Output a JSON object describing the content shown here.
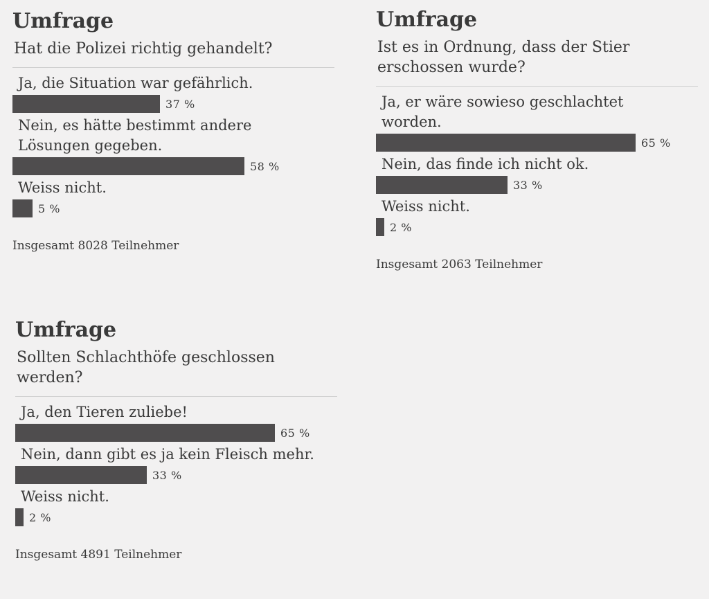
{
  "polls": [
    {
      "heading": "Umfrage",
      "question": "Hat die Polizei richtig gehandelt?",
      "answers": [
        {
          "label": "Ja, die Situation war gefährlich.",
          "percent": "37 %"
        },
        {
          "label": "Nein, es hätte bestimmt andere\nLösungen gegeben.",
          "percent": "58 %"
        },
        {
          "label": "Weiss nicht.",
          "percent": "5 %"
        }
      ],
      "total": "Insgesamt 8028 Teilnehmer"
    },
    {
      "heading": "Umfrage",
      "question": "Ist es in Ordnung, dass der Stier\nerschossen wurde?",
      "answers": [
        {
          "label": "Ja, er wäre sowieso geschlachtet\nworden.",
          "percent": "65 %"
        },
        {
          "label": "Nein, das finde ich nicht ok.",
          "percent": "33 %"
        },
        {
          "label": "Weiss nicht.",
          "percent": "2 %"
        }
      ],
      "total": "Insgesamt 2063 Teilnehmer"
    },
    {
      "heading": "Umfrage",
      "question": "Sollten Schlachthöfe geschlossen\nwerden?",
      "answers": [
        {
          "label": "Ja, den Tieren zuliebe!",
          "percent": "65 %"
        },
        {
          "label": "Nein, dann gibt es ja kein Fleisch mehr.",
          "percent": "33 %"
        },
        {
          "label": "Weiss nicht.",
          "percent": "2 %"
        }
      ],
      "total": "Insgesamt 4891 Teilnehmer"
    }
  ],
  "chart_data": [
    {
      "type": "bar",
      "title": "Hat die Polizei richtig gehandelt?",
      "categories": [
        "Ja, die Situation war gefährlich.",
        "Nein, es hätte bestimmt andere Lösungen gegeben.",
        "Weiss nicht."
      ],
      "values": [
        37,
        58,
        5
      ],
      "orientation": "horizontal",
      "bar_color": "#4f4d4e"
    },
    {
      "type": "bar",
      "title": "Ist es in Ordnung, dass der Stier erschossen wurde?",
      "categories": [
        "Ja, er wäre sowieso geschlachtet worden.",
        "Nein, das finde ich nicht ok.",
        "Weiss nicht."
      ],
      "values": [
        65,
        33,
        2
      ],
      "orientation": "horizontal",
      "bar_color": "#4f4d4e"
    },
    {
      "type": "bar",
      "title": "Sollten Schlachthöfe geschlossen werden?",
      "categories": [
        "Ja, den Tieren zuliebe!",
        "Nein, dann gibt es ja kein Fleisch mehr.",
        "Weiss nicht."
      ],
      "values": [
        65,
        33,
        2
      ],
      "orientation": "horizontal",
      "bar_color": "#4f4d4e"
    }
  ]
}
